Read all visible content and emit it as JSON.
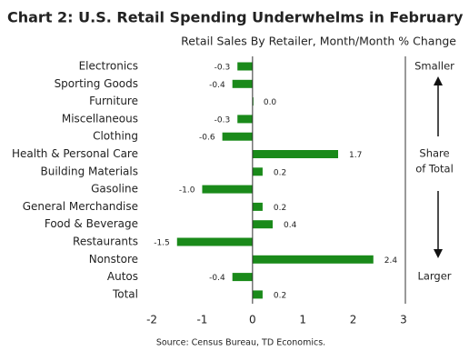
{
  "chart_data": {
    "type": "barh",
    "title": "Chart 2: U.S. Retail Spending Underwhelms in February",
    "subtitle": "Retail Sales By Retailer, Month/Month % Change",
    "source": "Source: Census Bureau, TD Economics.",
    "annotations": [
      "Smaller",
      "Share",
      "of Total",
      "Larger"
    ],
    "categories": [
      "Electronics",
      "Sporting Goods",
      "Furniture",
      "Miscellaneous",
      "Clothing",
      "Health & Personal Care",
      "Building Materials",
      "Gasoline",
      "General Merchandise",
      "Food & Beverage",
      "Restaurants",
      "Nonstore",
      "Autos",
      "Total"
    ],
    "values": [
      -0.3,
      -0.4,
      0.0,
      -0.3,
      -0.6,
      1.7,
      0.2,
      -1.0,
      0.2,
      0.4,
      -1.5,
      2.4,
      -0.4,
      0.2
    ],
    "value_labels": [
      "-0.3",
      "-0.4",
      "0.0",
      "-0.3",
      "-0.6",
      "1.7",
      "0.2",
      "-1.0",
      "0.2",
      "0.4",
      "-1.5",
      "2.4",
      "-0.4",
      "0.2"
    ],
    "color": "#1a8a1a",
    "xlim": [
      -2.2,
      3
    ],
    "xticks": [
      -2,
      -1,
      0,
      1,
      2,
      3
    ]
  }
}
